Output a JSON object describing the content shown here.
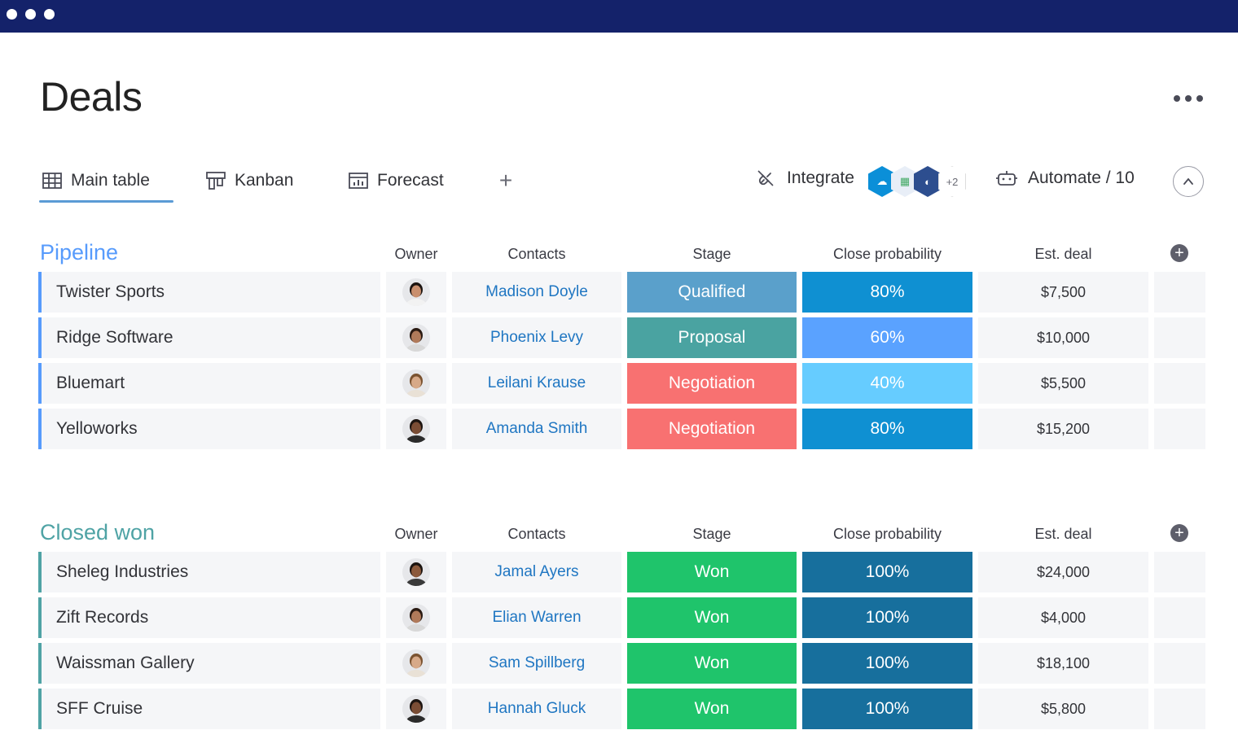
{
  "window": {
    "title": "Deals"
  },
  "header": {
    "more_label": "More options"
  },
  "tabs": [
    {
      "label": "Main table",
      "icon": "table-icon",
      "active": true
    },
    {
      "label": "Kanban",
      "icon": "kanban-icon",
      "active": false
    },
    {
      "label": "Forecast",
      "icon": "forecast-icon",
      "active": false
    }
  ],
  "toolbar": {
    "add_view": "+",
    "integrate_label": "Integrate",
    "integration_icons": [
      "salesforce-icon",
      "calendar-icon",
      "app-icon"
    ],
    "integration_more": "+2",
    "automate_label": "Automate / 10"
  },
  "columns": {
    "owner": "Owner",
    "contacts": "Contacts",
    "stage": "Stage",
    "probability": "Close probability",
    "deal": "Est. deal"
  },
  "colors": {
    "pipeline": "#579bfc",
    "closed_won": "#4fa3a5",
    "qualified": "#5aa0cb",
    "proposal": "#4aa3a1",
    "negotiation": "#f87171",
    "won": "#1fc46b",
    "prob_80": "#0f90d2",
    "prob_60": "#5aa2ff",
    "prob_40": "#66ccff",
    "prob_100": "#176f9d"
  },
  "groups": [
    {
      "title": "Pipeline",
      "rows": [
        {
          "name": "Twister Sports",
          "owner_avatar": "avatar-man-1",
          "contact": "Madison Doyle",
          "stage": "Qualified",
          "probability": "80%",
          "deal": "$7,500"
        },
        {
          "name": "Ridge Software",
          "owner_avatar": "avatar-woman-1",
          "contact": "Phoenix Levy",
          "stage": "Proposal",
          "probability": "60%",
          "deal": "$10,000"
        },
        {
          "name": "Bluemart",
          "owner_avatar": "avatar-woman-2",
          "contact": "Leilani Krause",
          "stage": "Negotiation",
          "probability": "40%",
          "deal": "$5,500"
        },
        {
          "name": "Yelloworks",
          "owner_avatar": "avatar-man-2",
          "contact": "Amanda Smith",
          "stage": "Negotiation",
          "probability": "80%",
          "deal": "$15,200"
        }
      ]
    },
    {
      "title": "Closed won",
      "rows": [
        {
          "name": "Sheleg Industries",
          "owner_avatar": "avatar-man-3",
          "contact": "Jamal Ayers",
          "stage": "Won",
          "probability": "100%",
          "deal": "$24,000"
        },
        {
          "name": "Zift Records",
          "owner_avatar": "avatar-woman-1",
          "contact": "Elian Warren",
          "stage": "Won",
          "probability": "100%",
          "deal": "$4,000"
        },
        {
          "name": "Waissman Gallery",
          "owner_avatar": "avatar-woman-2",
          "contact": "Sam Spillberg",
          "stage": "Won",
          "probability": "100%",
          "deal": "$18,100"
        },
        {
          "name": "SFF Cruise",
          "owner_avatar": "avatar-man-2",
          "contact": "Hannah Gluck",
          "stage": "Won",
          "probability": "100%",
          "deal": "$5,800"
        }
      ]
    }
  ]
}
